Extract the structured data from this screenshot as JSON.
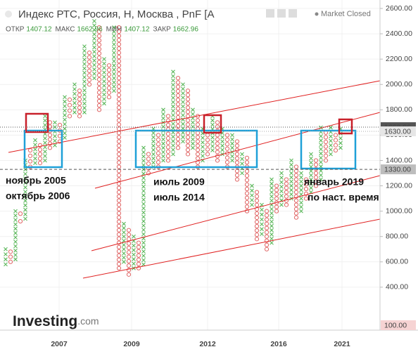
{
  "chart_data": {
    "type": "point_and_figure",
    "title": "Индекс РТС, Россия, Н, Москва , PnF [A",
    "status": "Market Closed",
    "ohlc": [
      {
        "label": "ОТКР",
        "value": 1407.12
      },
      {
        "label": "МАКС",
        "value": 1662.96
      },
      {
        "label": "МИН",
        "value": 1407.12
      },
      {
        "label": "ЗАКР",
        "value": 1662.96
      }
    ],
    "ylim": [
      100,
      2600
    ],
    "yticks": [
      {
        "value": 400,
        "label": "400.00"
      },
      {
        "value": 600,
        "label": "600.00"
      },
      {
        "value": 800,
        "label": "800.00"
      },
      {
        "value": 1000,
        "label": "1000.00"
      },
      {
        "value": 1200,
        "label": "1200.00"
      },
      {
        "value": 1400,
        "label": "1400.00"
      },
      {
        "value": 1600,
        "label": "1600.00"
      },
      {
        "value": 1800,
        "label": "1800.00"
      },
      {
        "value": 2000,
        "label": "2000.00"
      },
      {
        "value": 2200,
        "label": "2200.00"
      },
      {
        "value": 2400,
        "label": "2400.00"
      },
      {
        "value": 2600,
        "label": "2600.00"
      }
    ],
    "xticks": [
      "2007",
      "2009",
      "2012",
      "2016",
      "2021"
    ],
    "grid": true,
    "x_color": "#5cb85c",
    "o_color": "#e06666",
    "price_levels": [
      {
        "value": 1662.96,
        "label": "1662.96"
      },
      {
        "value": 1630,
        "label": "1630.00"
      },
      {
        "value": 1330,
        "label": "1330.00"
      },
      {
        "value": 100,
        "label": "100.00"
      }
    ],
    "columns": [
      {
        "type": "X",
        "low": 580,
        "high": 700
      },
      {
        "type": "O",
        "low": 600,
        "high": 680
      },
      {
        "type": "X",
        "low": 620,
        "high": 1000
      },
      {
        "type": "O",
        "low": 920,
        "high": 980
      },
      {
        "type": "X",
        "low": 940,
        "high": 1400
      },
      {
        "type": "O",
        "low": 1350,
        "high": 1480
      },
      {
        "type": "X",
        "low": 1380,
        "high": 1560
      },
      {
        "type": "O",
        "low": 1380,
        "high": 1520
      },
      {
        "type": "X",
        "low": 1400,
        "high": 1750
      },
      {
        "type": "O",
        "low": 1500,
        "high": 1700
      },
      {
        "type": "X",
        "low": 1520,
        "high": 1700
      },
      {
        "type": "O",
        "low": 1550,
        "high": 1680
      },
      {
        "type": "X",
        "low": 1580,
        "high": 1900
      },
      {
        "type": "O",
        "low": 1750,
        "high": 1880
      },
      {
        "type": "X",
        "low": 1780,
        "high": 2000
      },
      {
        "type": "O",
        "low": 1750,
        "high": 1950
      },
      {
        "type": "X",
        "low": 1780,
        "high": 2300
      },
      {
        "type": "O",
        "low": 2000,
        "high": 2250
      },
      {
        "type": "X",
        "low": 2050,
        "high": 2500
      },
      {
        "type": "O",
        "low": 1800,
        "high": 2450
      },
      {
        "type": "X",
        "low": 1850,
        "high": 2200
      },
      {
        "type": "O",
        "low": 1900,
        "high": 2150
      },
      {
        "type": "X",
        "low": 1950,
        "high": 2450
      },
      {
        "type": "O",
        "low": 550,
        "high": 2450
      },
      {
        "type": "X",
        "low": 600,
        "high": 900
      },
      {
        "type": "O",
        "low": 500,
        "high": 850
      },
      {
        "type": "X",
        "low": 550,
        "high": 800
      },
      {
        "type": "O",
        "low": 550,
        "high": 750
      },
      {
        "type": "X",
        "low": 580,
        "high": 1500
      },
      {
        "type": "O",
        "low": 1300,
        "high": 1450
      },
      {
        "type": "X",
        "low": 1350,
        "high": 1650
      },
      {
        "type": "O",
        "low": 1350,
        "high": 1600
      },
      {
        "type": "X",
        "low": 1400,
        "high": 1800
      },
      {
        "type": "O",
        "low": 1400,
        "high": 1750
      },
      {
        "type": "X",
        "low": 1450,
        "high": 2100
      },
      {
        "type": "O",
        "low": 1500,
        "high": 2050
      },
      {
        "type": "X",
        "low": 1550,
        "high": 2000
      },
      {
        "type": "O",
        "low": 1450,
        "high": 1950
      },
      {
        "type": "X",
        "low": 1500,
        "high": 1800
      },
      {
        "type": "O",
        "low": 1350,
        "high": 1750
      },
      {
        "type": "X",
        "low": 1400,
        "high": 1650
      },
      {
        "type": "O",
        "low": 1450,
        "high": 1600
      },
      {
        "type": "X",
        "low": 1480,
        "high": 1750
      },
      {
        "type": "O",
        "low": 1400,
        "high": 1700
      },
      {
        "type": "X",
        "low": 1450,
        "high": 1650
      },
      {
        "type": "O",
        "low": 1350,
        "high": 1600
      },
      {
        "type": "X",
        "low": 1400,
        "high": 1600
      },
      {
        "type": "O",
        "low": 1250,
        "high": 1550
      },
      {
        "type": "X",
        "low": 1300,
        "high": 1450
      },
      {
        "type": "O",
        "low": 1000,
        "high": 1420
      },
      {
        "type": "X",
        "low": 1050,
        "high": 1200
      },
      {
        "type": "O",
        "low": 780,
        "high": 1150
      },
      {
        "type": "X",
        "low": 820,
        "high": 1050
      },
      {
        "type": "O",
        "low": 700,
        "high": 1000
      },
      {
        "type": "X",
        "low": 750,
        "high": 1250
      },
      {
        "type": "O",
        "low": 1000,
        "high": 1200
      },
      {
        "type": "X",
        "low": 1050,
        "high": 1300
      },
      {
        "type": "O",
        "low": 1050,
        "high": 1250
      },
      {
        "type": "X",
        "low": 1100,
        "high": 1400
      },
      {
        "type": "O",
        "low": 950,
        "high": 1350
      },
      {
        "type": "X",
        "low": 1000,
        "high": 1300
      },
      {
        "type": "O",
        "low": 1100,
        "high": 1250
      },
      {
        "type": "X",
        "low": 1150,
        "high": 1450
      },
      {
        "type": "O",
        "low": 1200,
        "high": 1400
      },
      {
        "type": "X",
        "low": 1250,
        "high": 1660
      },
      {
        "type": "O",
        "low": 1400,
        "high": 1620
      },
      {
        "type": "X",
        "low": 1450,
        "high": 1660
      },
      {
        "type": "O",
        "low": 1480,
        "high": 1600
      },
      {
        "type": "X",
        "low": 1500,
        "high": 1650
      }
    ],
    "annotations": [
      "ноябрь 2005",
      "октябрь 2006",
      "июль 2009",
      "июль 2014",
      "январь 2019",
      "по наст. время"
    ],
    "logo": "Investing",
    "logo_suffix": ".com"
  }
}
